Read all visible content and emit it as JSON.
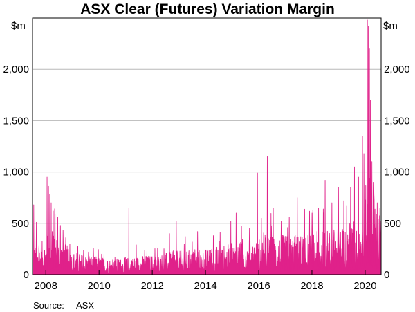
{
  "chart_data": {
    "type": "area",
    "title": "ASX Clear (Futures) Variation Margin",
    "unit_left": "$m",
    "unit_right": "$m",
    "x_range": [
      2007.5,
      2020.6
    ],
    "y_range": [
      0,
      2500
    ],
    "y_ticks": [
      0,
      500,
      1000,
      1500,
      2000
    ],
    "y_tick_labels": [
      "0",
      "500",
      "1,000",
      "1,500",
      "2,000"
    ],
    "x_ticks": [
      2008,
      2010,
      2012,
      2014,
      2016,
      2018,
      2020
    ],
    "x_tick_labels": [
      "2008",
      "2010",
      "2012",
      "2014",
      "2016",
      "2018",
      "2020"
    ],
    "grid": true,
    "legend": "none",
    "source_label": "Source:",
    "source_value": "ASX",
    "series": [
      {
        "color": "#e0218a",
        "frequency": "daily (approximate reconstruction)",
        "baseline": [
          [
            2007.5,
            150
          ],
          [
            2007.9,
            170
          ],
          [
            2008.0,
            200
          ],
          [
            2008.3,
            220
          ],
          [
            2008.7,
            160
          ],
          [
            2009.0,
            120
          ],
          [
            2009.5,
            100
          ],
          [
            2010.0,
            90
          ],
          [
            2010.5,
            80
          ],
          [
            2011.0,
            85
          ],
          [
            2011.5,
            95
          ],
          [
            2012.0,
            100
          ],
          [
            2012.5,
            110
          ],
          [
            2013.0,
            120
          ],
          [
            2013.5,
            125
          ],
          [
            2014.0,
            130
          ],
          [
            2014.5,
            145
          ],
          [
            2015.0,
            160
          ],
          [
            2015.5,
            170
          ],
          [
            2016.0,
            190
          ],
          [
            2016.5,
            200
          ],
          [
            2017.0,
            200
          ],
          [
            2017.5,
            205
          ],
          [
            2018.0,
            210
          ],
          [
            2018.5,
            225
          ],
          [
            2019.0,
            240
          ],
          [
            2019.5,
            270
          ],
          [
            2019.9,
            320
          ],
          [
            2020.0,
            420
          ],
          [
            2020.15,
            600
          ],
          [
            2020.3,
            450
          ],
          [
            2020.45,
            350
          ],
          [
            2020.6,
            300
          ]
        ],
        "spikes": [
          [
            2007.55,
            680
          ],
          [
            2007.65,
            510
          ],
          [
            2007.75,
            300
          ],
          [
            2008.05,
            950
          ],
          [
            2008.1,
            860
          ],
          [
            2008.15,
            780
          ],
          [
            2008.2,
            700
          ],
          [
            2008.28,
            620
          ],
          [
            2008.35,
            590
          ],
          [
            2008.45,
            560
          ],
          [
            2008.55,
            480
          ],
          [
            2008.65,
            430
          ],
          [
            2008.75,
            360
          ],
          [
            2008.9,
            300
          ],
          [
            2009.2,
            280
          ],
          [
            2009.6,
            220
          ],
          [
            2010.1,
            200
          ],
          [
            2010.6,
            170
          ],
          [
            2011.12,
            650
          ],
          [
            2011.4,
            290
          ],
          [
            2011.8,
            230
          ],
          [
            2012.2,
            260
          ],
          [
            2012.65,
            400
          ],
          [
            2012.9,
            520
          ],
          [
            2013.2,
            300
          ],
          [
            2013.7,
            420
          ],
          [
            2014.3,
            380
          ],
          [
            2014.55,
            410
          ],
          [
            2014.95,
            520
          ],
          [
            2015.15,
            600
          ],
          [
            2015.35,
            470
          ],
          [
            2015.65,
            450
          ],
          [
            2015.95,
            990
          ],
          [
            2016.1,
            550
          ],
          [
            2016.32,
            1150
          ],
          [
            2016.55,
            650
          ],
          [
            2016.85,
            520
          ],
          [
            2017.15,
            560
          ],
          [
            2017.45,
            750
          ],
          [
            2017.7,
            520
          ],
          [
            2018.0,
            600
          ],
          [
            2018.25,
            650
          ],
          [
            2018.5,
            920
          ],
          [
            2018.75,
            700
          ],
          [
            2019.0,
            850
          ],
          [
            2019.2,
            720
          ],
          [
            2019.45,
            850
          ],
          [
            2019.6,
            1050
          ],
          [
            2019.75,
            950
          ],
          [
            2019.9,
            1350
          ],
          [
            2019.95,
            1180
          ],
          [
            2020.08,
            2480
          ],
          [
            2020.12,
            2420
          ],
          [
            2020.16,
            2200
          ],
          [
            2020.2,
            1700
          ],
          [
            2020.25,
            1100
          ],
          [
            2020.32,
            900
          ],
          [
            2020.45,
            700
          ],
          [
            2020.55,
            650
          ]
        ]
      }
    ]
  }
}
